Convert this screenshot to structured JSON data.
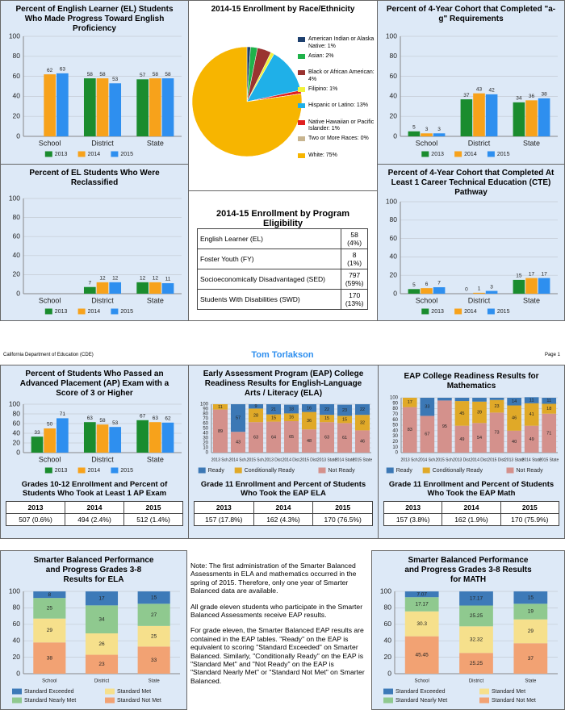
{
  "header": {
    "left": "California Department of Education (CDE)",
    "center": "Tom Torlakson",
    "right": "Page 1"
  },
  "chart_data": [
    {
      "type": "bar",
      "title": "Percent of English Learner (EL) Students Who Made Progress Toward English Proficiency",
      "categories": [
        "School",
        "District",
        "State"
      ],
      "series": [
        {
          "name": "2013",
          "color": "#1a8c2e",
          "values": [
            null,
            58,
            57
          ]
        },
        {
          "name": "2014",
          "color": "#f7a21b",
          "values": [
            62,
            58,
            58
          ]
        },
        {
          "name": "2015",
          "color": "#2e8fef",
          "values": [
            63,
            53,
            58
          ]
        }
      ],
      "ylim": [
        0,
        100
      ],
      "yticks": [
        0,
        20,
        40,
        60,
        80,
        100
      ],
      "grid": true
    },
    {
      "type": "bar",
      "title": "Percent of EL Students Who Were Reclassified",
      "categories": [
        "School",
        "District",
        "State"
      ],
      "series": [
        {
          "name": "2013",
          "color": "#1a8c2e",
          "values": [
            null,
            7,
            12
          ]
        },
        {
          "name": "2014",
          "color": "#f7a21b",
          "values": [
            null,
            12,
            12
          ]
        },
        {
          "name": "2015",
          "color": "#2e8fef",
          "values": [
            null,
            12,
            11
          ]
        }
      ],
      "ylim": [
        0,
        100
      ],
      "yticks": [
        0,
        20,
        40,
        60,
        80,
        100
      ],
      "grid": true
    },
    {
      "type": "pie",
      "title": "2014-15 Enrollment by Race/Ethnicity",
      "categories": [
        "American Indian or Alaska Native: 1%",
        "Asian: 2%",
        "Black or African American: 4%",
        "Filipino: 1%",
        "Hispanic or Latino: 13%",
        "Native Hawaiian or Pacific Islander: 1%",
        "Two or More Races: 0%",
        "White: 75%"
      ],
      "values": [
        1,
        2,
        4,
        1,
        13,
        1,
        0,
        75
      ],
      "colors": [
        "#1d3f6e",
        "#1fb24a",
        "#9a3330",
        "#f2f23a",
        "#1fb0e8",
        "#e02020",
        "#c8b590",
        "#f7b500"
      ]
    },
    {
      "type": "bar",
      "title": "Percent of 4-Year Cohort that Completed \"a-g\" Requirements",
      "categories": [
        "School",
        "District",
        "State"
      ],
      "series": [
        {
          "name": "2013",
          "color": "#1a8c2e",
          "values": [
            5,
            37,
            34
          ]
        },
        {
          "name": "2014",
          "color": "#f7a21b",
          "values": [
            3,
            43,
            36
          ]
        },
        {
          "name": "2015",
          "color": "#2e8fef",
          "values": [
            3,
            42,
            38
          ]
        }
      ],
      "ylim": [
        0,
        100
      ],
      "yticks": [
        0,
        20,
        40,
        60,
        80,
        100
      ],
      "grid": true
    },
    {
      "type": "bar",
      "title": "Percent of 4-Year Cohort that Completed At Least 1 Career Technical Education (CTE) Pathway",
      "categories": [
        "School",
        "District",
        "State"
      ],
      "series": [
        {
          "name": "2013",
          "color": "#1a8c2e",
          "values": [
            5,
            0,
            15
          ]
        },
        {
          "name": "2014",
          "color": "#f7a21b",
          "values": [
            6,
            1,
            17
          ]
        },
        {
          "name": "2015",
          "color": "#2e8fef",
          "values": [
            7,
            3,
            17
          ]
        }
      ],
      "ylim": [
        0,
        100
      ],
      "yticks": [
        0,
        20,
        40,
        60,
        80,
        100
      ],
      "grid": true
    },
    {
      "type": "bar",
      "title": "Percent of Students Who Passed an Advanced Placement (AP) Exam with a Score of 3 or Higher",
      "categories": [
        "School",
        "District",
        "State"
      ],
      "series": [
        {
          "name": "2013",
          "color": "#1a8c2e",
          "values": [
            33,
            63,
            67
          ]
        },
        {
          "name": "2014",
          "color": "#f7a21b",
          "values": [
            50,
            58,
            63
          ]
        },
        {
          "name": "2015",
          "color": "#2e8fef",
          "values": [
            71,
            53,
            62
          ]
        }
      ],
      "ylim": [
        0,
        100
      ],
      "yticks": [
        0,
        20,
        40,
        60,
        80,
        100
      ],
      "grid": true
    },
    {
      "type": "stacked_bar",
      "title": "Early Assessment Program (EAP) College Readiness Results for English-Language Arts / Literacy (ELA)",
      "categories": [
        "2013 Sch.",
        "2014 Sch.",
        "2015 Sch.",
        "2013 Dist.",
        "2014 Dist.",
        "2015 Dist.",
        "2013 State",
        "2014 State",
        "2015 State"
      ],
      "series": [
        {
          "name": "Ready",
          "color": "#3c78b5",
          "values": [
            null,
            57,
            9,
            21,
            18,
            16,
            22,
            23,
            22
          ]
        },
        {
          "name": "Conditionally Ready",
          "color": "#e0a928",
          "values": [
            11,
            null,
            28,
            15,
            16,
            36,
            15,
            15,
            32
          ]
        },
        {
          "name": "Not Ready",
          "color": "#d4918c",
          "values": [
            89,
            43,
            63,
            64,
            65,
            48,
            63,
            61,
            46
          ]
        }
      ],
      "ylim": [
        0,
        100
      ],
      "yticks": [
        0,
        10,
        20,
        30,
        40,
        50,
        60,
        70,
        80,
        90,
        100
      ],
      "grid": true
    },
    {
      "type": "stacked_bar",
      "title": "EAP College Readiness Results for Mathematics",
      "categories": [
        "2013 Sch.",
        "2014 Sch.",
        "2015 Sch.",
        "2013 Dist.",
        "2014 Dist.",
        "2015 Dist.",
        "2013 State",
        "2014 State",
        "2015 State"
      ],
      "series": [
        {
          "name": "Ready",
          "color": "#3c78b5",
          "values": [
            null,
            33,
            5,
            6,
            7,
            4,
            14,
            11,
            11
          ]
        },
        {
          "name": "Conditionally Ready",
          "color": "#e0a928",
          "values": [
            17,
            0,
            null,
            45,
            39,
            23,
            46,
            41,
            18
          ]
        },
        {
          "name": "Not Ready",
          "color": "#d4918c",
          "values": [
            83,
            67,
            95,
            49,
            54,
            73,
            40,
            49,
            71
          ]
        }
      ],
      "ylim": [
        0,
        100
      ],
      "yticks": [
        0,
        10,
        20,
        30,
        40,
        50,
        60,
        70,
        80,
        90,
        100
      ],
      "grid": true
    },
    {
      "type": "stacked_bar",
      "title": "Smarter Balanced Performance and Progress Grades 3-8 Results for ELA",
      "categories": [
        "School",
        "District",
        "State"
      ],
      "series": [
        {
          "name": "Standard Exceeded",
          "color": "#3d7ab8",
          "values": [
            8,
            17,
            15
          ]
        },
        {
          "name": "Standard Met",
          "color": "#f6e08c",
          "values": [
            29,
            26,
            25
          ]
        },
        {
          "name": "Standard Nearly Met",
          "color": "#8fc98f",
          "values": [
            25,
            34,
            27
          ]
        },
        {
          "name": "Standard Not Met",
          "color": "#f2a273",
          "values": [
            38,
            23,
            33
          ]
        }
      ],
      "ylim": [
        0,
        100
      ],
      "yticks": [
        0,
        20,
        40,
        60,
        80,
        100
      ],
      "grid": true
    },
    {
      "type": "stacked_bar",
      "title": "Smarter Balanced Performance and Progress Grades 3-8 Results for MATH",
      "categories": [
        "School",
        "District",
        "State"
      ],
      "series": [
        {
          "name": "Standard Exceeded",
          "color": "#3d7ab8",
          "values": [
            7.07,
            17.17,
            15
          ]
        },
        {
          "name": "Standard Met",
          "color": "#f6e08c",
          "values": [
            30.3,
            32.32,
            29
          ]
        },
        {
          "name": "Standard Nearly Met",
          "color": "#8fc98f",
          "values": [
            17.17,
            25.25,
            19
          ]
        },
        {
          "name": "Standard Not Met",
          "color": "#f2a273",
          "values": [
            45.45,
            25.25,
            37
          ]
        }
      ],
      "ylim": [
        0,
        100
      ],
      "yticks": [
        0,
        20,
        40,
        60,
        80,
        100
      ],
      "grid": true
    }
  ],
  "tables": [
    {
      "title": "2014-15 Enrollment by Program Eligibility",
      "rows": [
        [
          "English Learner (EL)",
          "58",
          "(4%)"
        ],
        [
          "Foster Youth (FY)",
          "8",
          "(1%)"
        ],
        [
          "Socioeconomically Disadvantaged (SED)",
          "797",
          "(59%)"
        ],
        [
          "Students With Disabilities (SWD)",
          "170",
          "(13%)"
        ]
      ]
    },
    {
      "title": "Grades 10-12 Enrollment and Percent of Students Who Took at Least 1 AP Exam",
      "columns": [
        "2013",
        "2014",
        "2015"
      ],
      "rows": [
        [
          "507 (0.6%)",
          "494 (2.4%)",
          "512 (1.4%)"
        ]
      ]
    },
    {
      "title": "Grade 11 Enrollment and Percent of Students Who Took the EAP ELA",
      "columns": [
        "2013",
        "2014",
        "2015"
      ],
      "rows": [
        [
          "157 (17.8%)",
          "162 (4.3%)",
          "170 (76.5%)"
        ]
      ]
    },
    {
      "title": "Grade 11 Enrollment and Percent of Students Who Took the EAP Math",
      "columns": [
        "2013",
        "2014",
        "2015"
      ],
      "rows": [
        [
          "157 (3.8%)",
          "162 (1.9%)",
          "170 (75.9%)"
        ]
      ]
    }
  ],
  "note": [
    "Note: The first administration of the Smarter Balanced Assessments in ELA and mathematics occurred in the spring of 2015. Therefore, only one year of Smarter Balanced data are available.",
    "All grade eleven students who participate in the Smarter Balanced Assessments receive EAP results.",
    "For grade eleven, the Smarter Balanced EAP results are contained in the EAP tables. \"Ready\" on the EAP is equivalent to scoring \"Standard Exceeded\" on Smarter Balanced. Similarly, \"Conditionally Ready\" on the EAP is \"Standard Met\" and \"Not Ready\" on the EAP is \"Standard Nearly Met\" or \"Standard Not Met\" on Smarter Balanced."
  ]
}
